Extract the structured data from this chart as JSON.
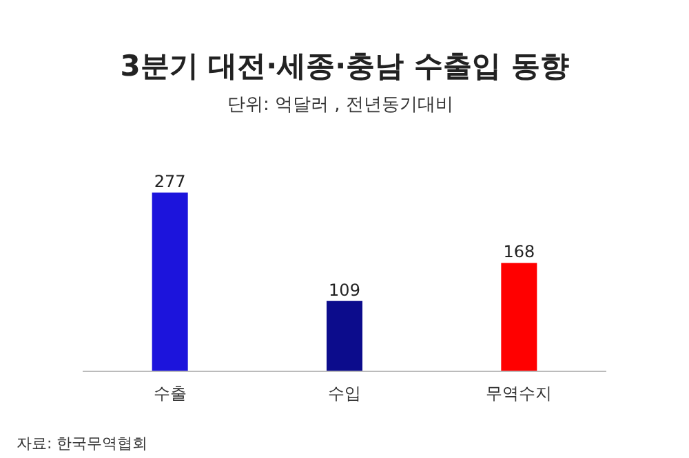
{
  "chart_data": {
    "type": "bar",
    "title": "3분기 대전·세종·충남 수출입 동향",
    "subtitle": "단위: 억달러 , 전년동기대비",
    "categories": [
      "수출",
      "수입",
      "무역수지"
    ],
    "values": [
      277,
      109,
      168
    ],
    "colors": [
      "#1c14dc",
      "#0c0c8c",
      "#ff0000"
    ],
    "data_labels": true,
    "annotations": [
      "자료: 한국무역협회"
    ]
  }
}
